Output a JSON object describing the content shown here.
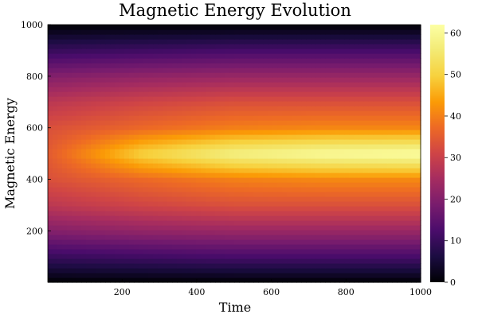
{
  "chart_data": {
    "type": "heatmap",
    "title": "Magnetic Energy Evolution",
    "xlabel": "Time",
    "ylabel": "Magnetic Energy",
    "xlim": [
      1,
      1000
    ],
    "ylim": [
      1,
      1000
    ],
    "x_ticks": [
      200,
      400,
      600,
      800,
      1000
    ],
    "y_ticks": [
      200,
      400,
      600,
      800,
      1000
    ],
    "colorbar": {
      "colormap": "inferno",
      "range": [
        0,
        62
      ],
      "ticks": [
        0,
        10,
        20,
        30,
        40,
        50,
        60
      ]
    },
    "field": {
      "description_of_values": "z peaks along y = 500 and grows with time; z falls toward 0 at y = 1 and y = 1000",
      "samples_x": [
        1,
        250,
        500,
        750,
        1000
      ],
      "samples_y": [
        1,
        100,
        200,
        300,
        400,
        500,
        600,
        700,
        800,
        900,
        1000
      ],
      "values": [
        [
          0,
          0,
          0,
          0,
          0
        ],
        [
          10,
          11,
          12,
          12,
          12
        ],
        [
          20,
          22,
          23,
          23,
          23
        ],
        [
          28,
          31,
          33,
          33,
          33
        ],
        [
          33,
          37,
          40,
          41,
          41
        ],
        [
          35,
          50,
          58,
          61,
          62
        ],
        [
          33,
          37,
          40,
          41,
          41
        ],
        [
          28,
          31,
          33,
          33,
          33
        ],
        [
          20,
          22,
          23,
          23,
          23
        ],
        [
          10,
          11,
          12,
          12,
          12
        ],
        [
          0,
          0,
          0,
          0,
          0
        ]
      ]
    },
    "grid": false,
    "legend": "none"
  }
}
